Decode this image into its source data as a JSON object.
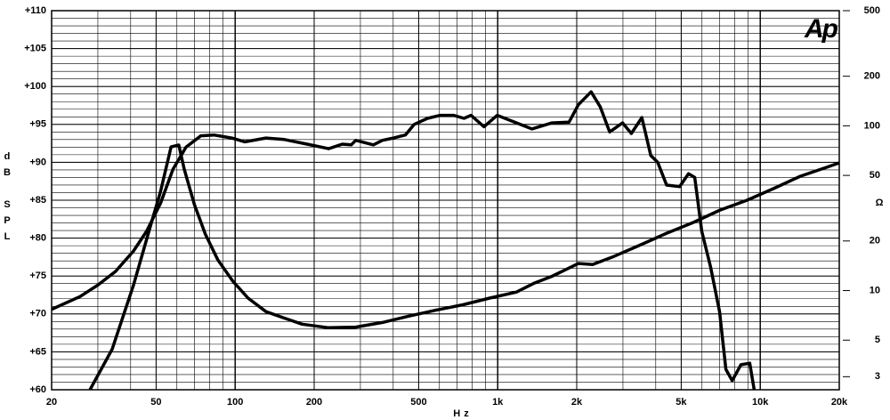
{
  "chart_data": {
    "type": "line",
    "logo": "Ap",
    "xlabel": "Hz",
    "ylabel": "dB SPL",
    "y2label": "Ω",
    "xscale": "log",
    "y2scale": "log",
    "grid": true,
    "y_minor_step": 1,
    "xlim": [
      20,
      20000
    ],
    "ylim": [
      60,
      110
    ],
    "y2lim": [
      2.5,
      500
    ],
    "xticks": [
      20,
      50,
      100,
      200,
      500,
      {
        "value": 1000,
        "label": "1k"
      },
      {
        "value": 2000,
        "label": "2k"
      },
      {
        "value": 5000,
        "label": "5k"
      },
      {
        "value": 10000,
        "label": "10k"
      },
      {
        "value": 20000,
        "label": "20k"
      }
    ],
    "yticks": [
      {
        "value": 60,
        "label": "+60"
      },
      {
        "value": 65,
        "label": "+65"
      },
      {
        "value": 70,
        "label": "+70"
      },
      {
        "value": 75,
        "label": "+75"
      },
      {
        "value": 80,
        "label": "+80"
      },
      {
        "value": 85,
        "label": "+85"
      },
      {
        "value": 90,
        "label": "+90"
      },
      {
        "value": 95,
        "label": "+95"
      },
      {
        "value": 100,
        "label": "+100"
      },
      {
        "value": 105,
        "label": "+105"
      },
      {
        "value": 110,
        "label": "+110"
      }
    ],
    "y2ticks": [
      3,
      5,
      10,
      20,
      50,
      100,
      200,
      500
    ],
    "series": [
      {
        "color": "#000000",
        "x": [
          20,
          25.7,
          30,
          35,
          41,
          46,
          52,
          58,
          65,
          74,
          83,
          97,
          109,
          131,
          154,
          188,
          227,
          256,
          277,
          288,
          336,
          364,
          401,
          445,
          481,
          540,
          605,
          679,
          744,
          791,
          887,
          996,
          1160,
          1350,
          1610,
          1870,
          2030,
          2270,
          2460,
          2670,
          2990,
          3230,
          3540,
          3830,
          4070,
          4400,
          4930,
          5330,
          5630,
          5990,
          6470,
          7000,
          7400,
          7820,
          8440,
          9120,
          9480
        ],
        "values": [
          70.6,
          72.3,
          73.8,
          75.6,
          78.3,
          80.9,
          84.6,
          89.1,
          92.0,
          93.5,
          93.6,
          93.2,
          92.7,
          93.2,
          93.0,
          92.4,
          91.8,
          92.4,
          92.3,
          92.9,
          92.3,
          92.9,
          93.2,
          93.6,
          95.0,
          95.8,
          96.2,
          96.2,
          95.8,
          96.2,
          94.7,
          96.2,
          95.3,
          94.4,
          95.2,
          95.3,
          97.6,
          99.3,
          97.3,
          94.0,
          95.2,
          93.8,
          95.9,
          90.9,
          90.0,
          87.0,
          86.8,
          88.5,
          88.0,
          80.9,
          76.2,
          70.3,
          62.7,
          61.2,
          63.3,
          63.5,
          60.0
        ]
      },
      {
        "color": "#000000",
        "axis": "y2",
        "x": [
          28,
          34,
          41,
          48,
          52,
          57,
          61,
          64,
          70,
          77,
          86,
          98,
          112,
          131,
          154,
          180,
          227,
          288,
          364,
          460,
          582,
          737,
          932,
          1180,
          1380,
          1610,
          2030,
          2300,
          2770,
          3490,
          4400,
          5560,
          7030,
          8890,
          11200,
          14200,
          17900,
          20000
        ],
        "values": [
          2.5,
          4.4,
          10.8,
          25.9,
          40,
          74.5,
          76.4,
          54.6,
          33.2,
          22,
          15.3,
          11.4,
          9.0,
          7.45,
          6.8,
          6.25,
          5.95,
          6.0,
          6.4,
          7.0,
          7.6,
          8.2,
          9.0,
          9.8,
          11.1,
          12.2,
          14.6,
          14.4,
          16.1,
          18.9,
          22.3,
          25.9,
          30.8,
          35.3,
          41.5,
          49.4,
          56,
          59.6
        ]
      }
    ]
  }
}
